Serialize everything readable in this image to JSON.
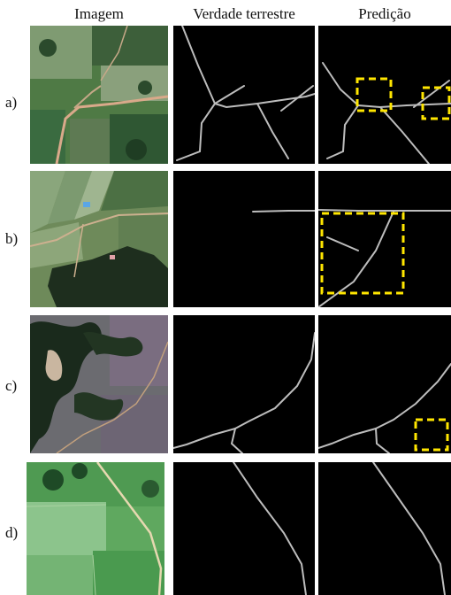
{
  "headers": {
    "image": "Imagem",
    "ground_truth": "Verdade terrestre",
    "prediction": "Predição"
  },
  "rows": [
    {
      "label": "a)"
    },
    {
      "label": "b)"
    },
    {
      "label": "c)"
    },
    {
      "label": "d)"
    }
  ],
  "colors": {
    "mask_background": "#000000",
    "road_line": "#bdbdbd",
    "highlight_box": "#ffe600"
  }
}
